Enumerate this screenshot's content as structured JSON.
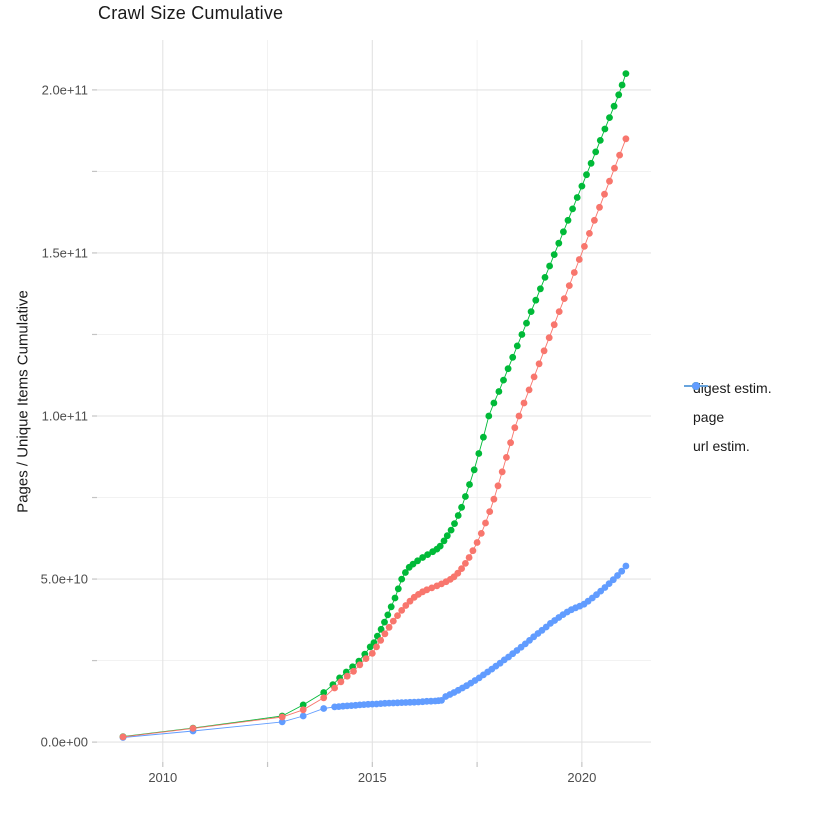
{
  "chart_data": {
    "type": "scatter",
    "title": "Crawl Size Cumulative",
    "xlabel": "",
    "ylabel": "Pages / Unique Items Cumulative",
    "legend_position": "right",
    "grid": "on",
    "background": "#ffffff",
    "x_axis": {
      "ticks": [
        {
          "value": 2010,
          "label": "2010"
        },
        {
          "value": 2015,
          "label": "2015"
        },
        {
          "value": 2020,
          "label": "2020"
        }
      ],
      "minor_ticks": [
        2012.5,
        2017.5
      ],
      "range_years": [
        2008.43,
        2021.65
      ]
    },
    "y_axis": {
      "ticks": [
        {
          "value": 0,
          "label": "0.0e+00"
        },
        {
          "value": 50,
          "label": "5.0e+10"
        },
        {
          "value": 100,
          "label": "1.0e+11"
        },
        {
          "value": 150,
          "label": "1.5e+11"
        },
        {
          "value": 200,
          "label": "2.0e+11"
        }
      ],
      "minor_ticks": [
        25,
        75,
        125,
        175
      ],
      "range": [
        -6.1,
        215.3
      ],
      "unit_scale": "values are billions (1e9) of pages / items"
    },
    "series": [
      {
        "name": "url estim.",
        "color": "#619CFF",
        "points": [
          [
            2009.05,
            1.4
          ],
          [
            2010.72,
            3.4
          ],
          [
            2012.85,
            6.2
          ],
          [
            2013.35,
            8.0
          ],
          [
            2013.84,
            10.3
          ],
          [
            2014.1,
            10.8
          ],
          [
            2014.2,
            10.9
          ],
          [
            2014.3,
            11.0
          ],
          [
            2014.4,
            11.1
          ],
          [
            2014.5,
            11.2
          ],
          [
            2014.6,
            11.3
          ],
          [
            2014.7,
            11.4
          ],
          [
            2014.8,
            11.5
          ],
          [
            2014.9,
            11.6
          ],
          [
            2015.0,
            11.65
          ],
          [
            2015.1,
            11.7
          ],
          [
            2015.2,
            11.8
          ],
          [
            2015.3,
            11.9
          ],
          [
            2015.4,
            11.95
          ],
          [
            2015.5,
            12.0
          ],
          [
            2015.6,
            12.05
          ],
          [
            2015.7,
            12.1
          ],
          [
            2015.8,
            12.15
          ],
          [
            2015.9,
            12.2
          ],
          [
            2016.0,
            12.25
          ],
          [
            2016.1,
            12.3
          ],
          [
            2016.2,
            12.4
          ],
          [
            2016.3,
            12.5
          ],
          [
            2016.4,
            12.55
          ],
          [
            2016.5,
            12.6
          ],
          [
            2016.58,
            12.7
          ],
          [
            2016.65,
            12.8
          ],
          [
            2016.75,
            14.0
          ],
          [
            2016.85,
            14.6
          ],
          [
            2016.95,
            15.2
          ],
          [
            2017.05,
            15.9
          ],
          [
            2017.15,
            16.6
          ],
          [
            2017.25,
            17.3
          ],
          [
            2017.35,
            18.1
          ],
          [
            2017.45,
            18.9
          ],
          [
            2017.55,
            19.7
          ],
          [
            2017.65,
            20.6
          ],
          [
            2017.75,
            21.5
          ],
          [
            2017.85,
            22.4
          ],
          [
            2017.95,
            23.3
          ],
          [
            2018.05,
            24.2
          ],
          [
            2018.15,
            25.2
          ],
          [
            2018.25,
            26.1
          ],
          [
            2018.35,
            27.1
          ],
          [
            2018.45,
            28.1
          ],
          [
            2018.55,
            29.1
          ],
          [
            2018.65,
            30.1
          ],
          [
            2018.75,
            31.2
          ],
          [
            2018.85,
            32.3
          ],
          [
            2018.95,
            33.3
          ],
          [
            2019.05,
            34.3
          ],
          [
            2019.15,
            35.3
          ],
          [
            2019.25,
            36.4
          ],
          [
            2019.35,
            37.3
          ],
          [
            2019.45,
            38.2
          ],
          [
            2019.55,
            39.1
          ],
          [
            2019.65,
            39.9
          ],
          [
            2019.75,
            40.6
          ],
          [
            2019.85,
            41.2
          ],
          [
            2019.95,
            41.7
          ],
          [
            2020.05,
            42.3
          ],
          [
            2020.15,
            43.2
          ],
          [
            2020.25,
            44.2
          ],
          [
            2020.35,
            45.2
          ],
          [
            2020.45,
            46.3
          ],
          [
            2020.55,
            47.4
          ],
          [
            2020.65,
            48.6
          ],
          [
            2020.75,
            49.8
          ],
          [
            2020.85,
            51.1
          ],
          [
            2020.95,
            52.4
          ],
          [
            2021.05,
            54.0
          ]
        ]
      },
      {
        "name": "page",
        "color": "#00BA38",
        "points": [
          [
            2009.05,
            1.7
          ],
          [
            2010.72,
            4.3
          ],
          [
            2012.85,
            8.0
          ],
          [
            2013.35,
            11.4
          ],
          [
            2013.84,
            15.2
          ],
          [
            2014.06,
            17.6
          ],
          [
            2014.22,
            19.7
          ],
          [
            2014.38,
            21.5
          ],
          [
            2014.53,
            23.1
          ],
          [
            2014.68,
            24.8
          ],
          [
            2014.82,
            27.0
          ],
          [
            2014.95,
            29.2
          ],
          [
            2015.04,
            30.5
          ],
          [
            2015.12,
            32.5
          ],
          [
            2015.21,
            34.6
          ],
          [
            2015.29,
            36.8
          ],
          [
            2015.37,
            39.0
          ],
          [
            2015.45,
            41.5
          ],
          [
            2015.54,
            44.2
          ],
          [
            2015.62,
            47.0
          ],
          [
            2015.7,
            50.0
          ],
          [
            2015.79,
            52.0
          ],
          [
            2015.88,
            53.6
          ],
          [
            2015.97,
            54.6
          ],
          [
            2016.08,
            55.6
          ],
          [
            2016.2,
            56.6
          ],
          [
            2016.32,
            57.5
          ],
          [
            2016.44,
            58.4
          ],
          [
            2016.54,
            59.2
          ],
          [
            2016.62,
            60.1
          ],
          [
            2016.71,
            61.7
          ],
          [
            2016.79,
            63.3
          ],
          [
            2016.88,
            65.0
          ],
          [
            2016.96,
            67.0
          ],
          [
            2017.05,
            69.5
          ],
          [
            2017.13,
            72.0
          ],
          [
            2017.22,
            75.3
          ],
          [
            2017.32,
            79.0
          ],
          [
            2017.43,
            83.5
          ],
          [
            2017.54,
            88.5
          ],
          [
            2017.65,
            93.5
          ],
          [
            2017.78,
            100.0
          ],
          [
            2017.9,
            104
          ],
          [
            2018.02,
            107.5
          ],
          [
            2018.13,
            111
          ],
          [
            2018.24,
            114.5
          ],
          [
            2018.35,
            118
          ],
          [
            2018.46,
            121.5
          ],
          [
            2018.57,
            125
          ],
          [
            2018.68,
            128.5
          ],
          [
            2018.79,
            132
          ],
          [
            2018.9,
            135.5
          ],
          [
            2019.01,
            139
          ],
          [
            2019.12,
            142.5
          ],
          [
            2019.23,
            146
          ],
          [
            2019.34,
            149.5
          ],
          [
            2019.45,
            153
          ],
          [
            2019.56,
            156.5
          ],
          [
            2019.67,
            160
          ],
          [
            2019.78,
            163.5
          ],
          [
            2019.89,
            167
          ],
          [
            2020.0,
            170.5
          ],
          [
            2020.11,
            174
          ],
          [
            2020.22,
            177.5
          ],
          [
            2020.33,
            181
          ],
          [
            2020.44,
            184.5
          ],
          [
            2020.55,
            188
          ],
          [
            2020.66,
            191.5
          ],
          [
            2020.77,
            195
          ],
          [
            2020.88,
            198.5
          ],
          [
            2020.96,
            201.5
          ],
          [
            2021.05,
            205
          ]
        ]
      },
      {
        "name": "digest estim.",
        "color": "#F8766D",
        "points": [
          [
            2009.05,
            1.6
          ],
          [
            2010.72,
            4.2
          ],
          [
            2012.85,
            7.7
          ],
          [
            2013.35,
            9.9
          ],
          [
            2013.84,
            13.6
          ],
          [
            2014.1,
            16.6
          ],
          [
            2014.25,
            18.5
          ],
          [
            2014.4,
            20.2
          ],
          [
            2014.55,
            21.7
          ],
          [
            2014.7,
            23.7
          ],
          [
            2014.85,
            25.6
          ],
          [
            2015.0,
            27.2
          ],
          [
            2015.1,
            29.2
          ],
          [
            2015.2,
            31.2
          ],
          [
            2015.3,
            33.2
          ],
          [
            2015.4,
            35.2
          ],
          [
            2015.5,
            37.1
          ],
          [
            2015.6,
            38.8
          ],
          [
            2015.7,
            40.4
          ],
          [
            2015.8,
            41.9
          ],
          [
            2015.9,
            43.2
          ],
          [
            2016.0,
            44.4
          ],
          [
            2016.1,
            45.3
          ],
          [
            2016.2,
            46.1
          ],
          [
            2016.3,
            46.7
          ],
          [
            2016.42,
            47.3
          ],
          [
            2016.54,
            47.9
          ],
          [
            2016.65,
            48.5
          ],
          [
            2016.76,
            49.2
          ],
          [
            2016.86,
            49.9
          ],
          [
            2016.95,
            50.7
          ],
          [
            2017.04,
            51.8
          ],
          [
            2017.13,
            53.2
          ],
          [
            2017.22,
            54.8
          ],
          [
            2017.31,
            56.6
          ],
          [
            2017.4,
            58.7
          ],
          [
            2017.5,
            61.2
          ],
          [
            2017.6,
            64.0
          ],
          [
            2017.7,
            67.2
          ],
          [
            2017.8,
            70.7
          ],
          [
            2017.9,
            74.5
          ],
          [
            2018.0,
            78.6
          ],
          [
            2018.1,
            82.9
          ],
          [
            2018.2,
            87.3
          ],
          [
            2018.3,
            91.8
          ],
          [
            2018.4,
            96.4
          ],
          [
            2018.5,
            100.0
          ],
          [
            2018.62,
            104
          ],
          [
            2018.74,
            108
          ],
          [
            2018.86,
            112
          ],
          [
            2018.98,
            116
          ],
          [
            2019.1,
            120
          ],
          [
            2019.22,
            124
          ],
          [
            2019.34,
            128
          ],
          [
            2019.46,
            132
          ],
          [
            2019.58,
            136
          ],
          [
            2019.7,
            140
          ],
          [
            2019.82,
            144
          ],
          [
            2019.94,
            148
          ],
          [
            2020.06,
            152
          ],
          [
            2020.18,
            156
          ],
          [
            2020.3,
            160
          ],
          [
            2020.42,
            164
          ],
          [
            2020.54,
            168
          ],
          [
            2020.66,
            172
          ],
          [
            2020.78,
            176
          ],
          [
            2020.9,
            180
          ],
          [
            2021.05,
            185
          ]
        ]
      }
    ],
    "legend_order": [
      "digest estim.",
      "page",
      "url estim."
    ],
    "colors": {
      "grid_major": "#E3E3E3",
      "grid_minor": "#F0F0F0",
      "tick_mark": "#C4C4C4",
      "tick_label": "#4D4D4D",
      "text": "#1A1A1A"
    }
  }
}
